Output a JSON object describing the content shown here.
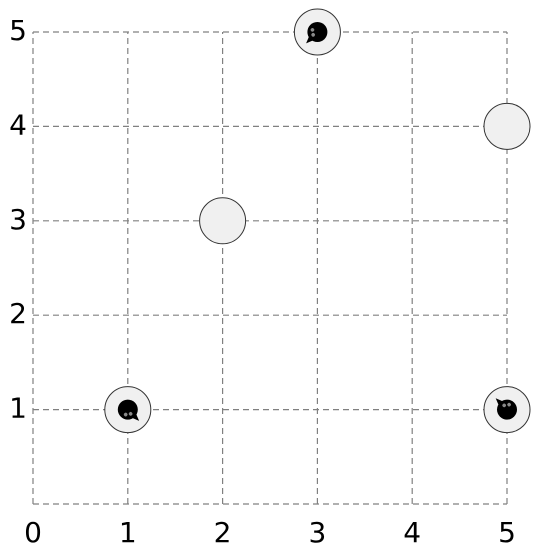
{
  "board": {
    "x_labels": [
      "0",
      "1",
      "2",
      "3",
      "4",
      "5"
    ],
    "y_labels": [
      "1",
      "2",
      "3",
      "4",
      "5"
    ],
    "x_range": [
      0,
      5
    ],
    "y_range": [
      0,
      5
    ],
    "grid": "dashed",
    "cells": [
      {
        "x": 1,
        "y": 1,
        "state": "occupied",
        "facing": "down-right"
      },
      {
        "x": 2,
        "y": 3,
        "state": "empty"
      },
      {
        "x": 3,
        "y": 5,
        "state": "occupied",
        "facing": "down-left"
      },
      {
        "x": 5,
        "y": 4,
        "state": "empty"
      },
      {
        "x": 5,
        "y": 1,
        "state": "occupied",
        "facing": "up-left"
      }
    ],
    "colors": {
      "background": "#ffffff",
      "grid_line": "#808080",
      "cell_fill": "#f0f0f0",
      "cell_stroke": "#333333",
      "piece": "#000000",
      "label": "#000000"
    }
  }
}
